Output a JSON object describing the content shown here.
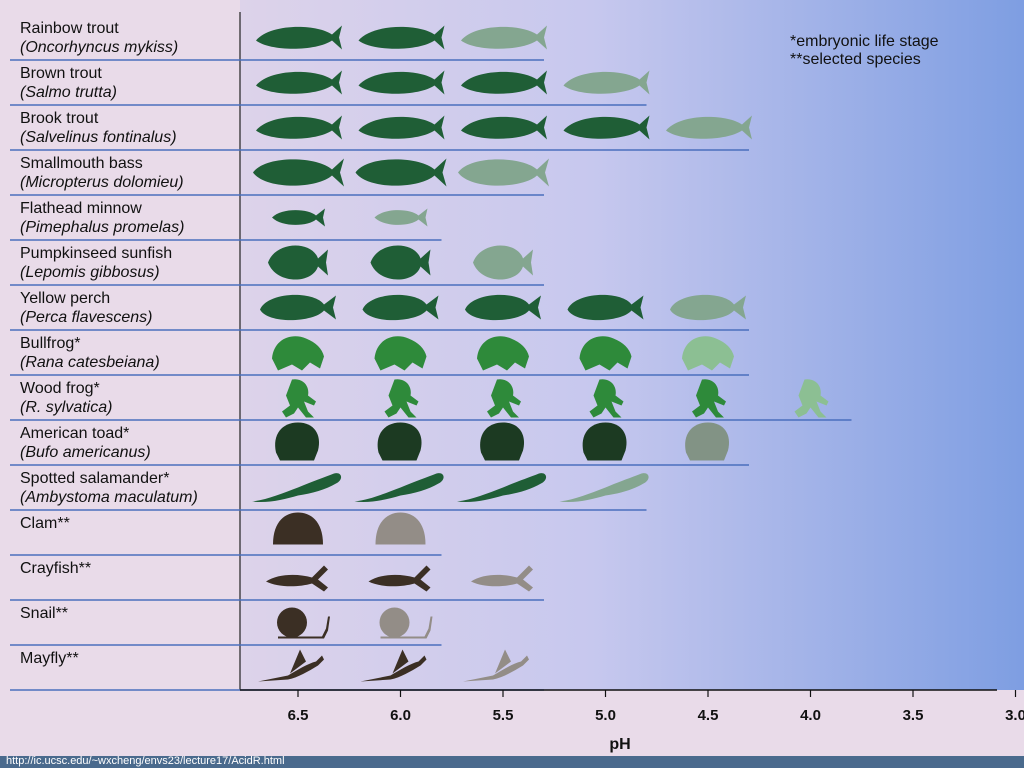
{
  "chart_data": {
    "type": "table",
    "title": "",
    "xlabel": "pH",
    "x_ticks": [
      "6.5",
      "6.0",
      "5.5",
      "5.0",
      "4.5",
      "4.0",
      "3.5",
      "3.0"
    ],
    "xlim": [
      6.8,
      3.0
    ],
    "notes": [
      "*embryonic life stage",
      "**selected species"
    ],
    "species": [
      {
        "common": "Rainbow trout",
        "scientific": "(Oncorhyncus mykiss)",
        "icon": "trout-icon",
        "icon_color": "#1f5e36",
        "ph_values": [
          6.5,
          6.0,
          5.5
        ],
        "sensitive_at": [
          5.5
        ],
        "bar_end_ph": 5.3
      },
      {
        "common": "Brown trout",
        "scientific": "(Salmo trutta)",
        "icon": "trout-icon",
        "icon_color": "#1f5e36",
        "ph_values": [
          6.5,
          6.0,
          5.5,
          5.0
        ],
        "sensitive_at": [
          5.0
        ],
        "bar_end_ph": 4.8
      },
      {
        "common": "Brook trout",
        "scientific": "(Salvelinus fontinalus)",
        "icon": "trout-icon",
        "icon_color": "#1f5e36",
        "ph_values": [
          6.5,
          6.0,
          5.5,
          5.0,
          4.5
        ],
        "sensitive_at": [
          4.5
        ],
        "bar_end_ph": 4.3
      },
      {
        "common": "Smallmouth bass",
        "scientific": "(Micropterus dolomieu)",
        "icon": "bass-icon",
        "icon_color": "#1f5e36",
        "ph_values": [
          6.5,
          6.0,
          5.5
        ],
        "sensitive_at": [
          5.5
        ],
        "bar_end_ph": 5.3
      },
      {
        "common": "Flathead minnow",
        "scientific": "(Pimephalus promelas)",
        "icon": "minnow-icon",
        "icon_color": "#1f5e36",
        "ph_values": [
          6.5,
          6.0
        ],
        "sensitive_at": [
          6.0
        ],
        "bar_end_ph": 5.8
      },
      {
        "common": "Pumpkinseed sunfish",
        "scientific": "(Lepomis gibbosus)",
        "icon": "sunfish-icon",
        "icon_color": "#1f5e36",
        "ph_values": [
          6.5,
          6.0,
          5.5
        ],
        "sensitive_at": [
          5.5
        ],
        "bar_end_ph": 5.3
      },
      {
        "common": "Yellow perch",
        "scientific": "(Perca flavescens)",
        "icon": "perch-icon",
        "icon_color": "#1f5e36",
        "ph_values": [
          6.5,
          6.0,
          5.5,
          5.0,
          4.5
        ],
        "sensitive_at": [
          4.5
        ],
        "bar_end_ph": 4.3
      },
      {
        "common": "Bullfrog*",
        "scientific": "(Rana catesbeiana)",
        "icon": "frog-icon",
        "icon_color": "#2e8a3a",
        "ph_values": [
          6.5,
          6.0,
          5.5,
          5.0,
          4.5
        ],
        "sensitive_at": [
          4.5
        ],
        "bar_end_ph": 4.3
      },
      {
        "common": "Wood frog*",
        "scientific": "(R. sylvatica)",
        "icon": "wood-frog-icon",
        "icon_color": "#2e8a3a",
        "ph_values": [
          6.5,
          6.0,
          5.5,
          5.0,
          4.5,
          4.0
        ],
        "sensitive_at": [
          4.0
        ],
        "bar_end_ph": 3.8
      },
      {
        "common": "American toad*",
        "scientific": "(Bufo americanus)",
        "icon": "toad-icon",
        "icon_color": "#1c3a22",
        "ph_values": [
          6.5,
          6.0,
          5.5,
          5.0,
          4.5
        ],
        "sensitive_at": [
          4.5
        ],
        "bar_end_ph": 4.3
      },
      {
        "common": "Spotted salamander*",
        "scientific": "(Ambystoma maculatum)",
        "icon": "salamander-icon",
        "icon_color": "#1f5e36",
        "ph_values": [
          6.5,
          6.0,
          5.5,
          5.0
        ],
        "sensitive_at": [
          5.0
        ],
        "bar_end_ph": 4.8
      },
      {
        "common": "Clam**",
        "scientific": "",
        "icon": "clam-icon",
        "icon_color": "#3b2f24",
        "ph_values": [
          6.5,
          6.0
        ],
        "sensitive_at": [
          6.0
        ],
        "bar_end_ph": 5.8
      },
      {
        "common": "Crayfish**",
        "scientific": "",
        "icon": "crayfish-icon",
        "icon_color": "#3b2f24",
        "ph_values": [
          6.5,
          6.0,
          5.5
        ],
        "sensitive_at": [
          5.5
        ],
        "bar_end_ph": 5.3
      },
      {
        "common": "Snail**",
        "scientific": "",
        "icon": "snail-icon",
        "icon_color": "#3b2f24",
        "ph_values": [
          6.5,
          6.0
        ],
        "sensitive_at": [
          6.0
        ],
        "bar_end_ph": 5.8
      },
      {
        "common": "Mayfly**",
        "scientific": "",
        "icon": "mayfly-icon",
        "icon_color": "#3b2f24",
        "ph_values": [
          6.5,
          6.0,
          5.5
        ],
        "sensitive_at": [
          5.5
        ],
        "bar_end_ph": 5.3
      }
    ]
  },
  "footer": {
    "url": "http://ic.ucsc.edu/~wxcheng/envs23/lecture17/AcidR.html"
  }
}
